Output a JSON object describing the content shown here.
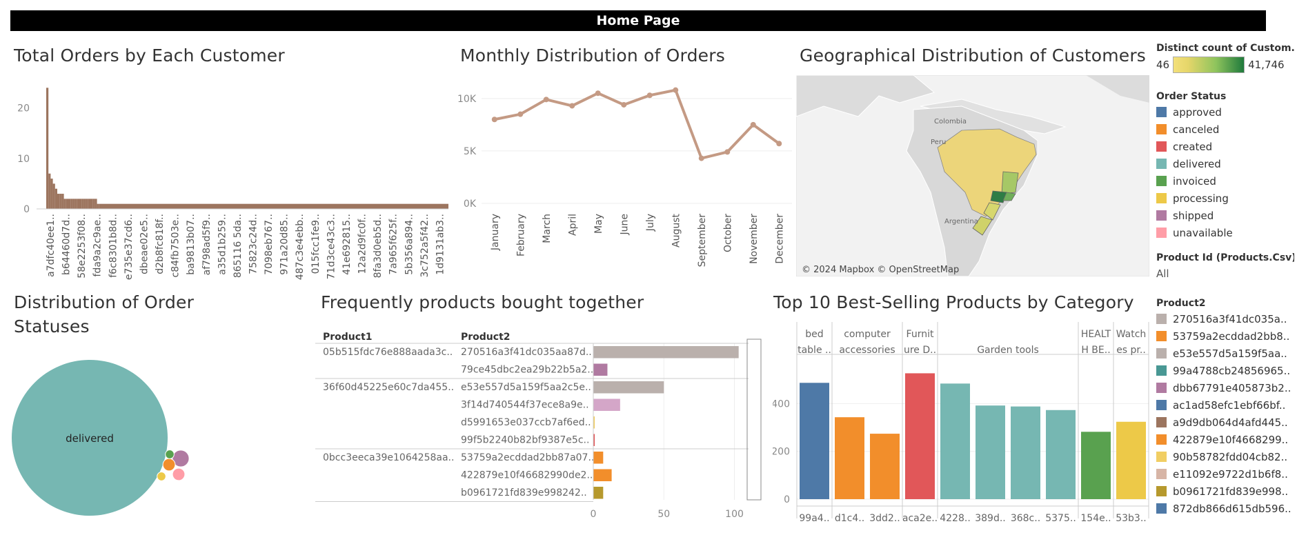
{
  "header": {
    "title": "Home Page"
  },
  "titles": {
    "orders_by_customer": "Total Orders by Each Customer",
    "monthly": "Monthly Distribution of Orders",
    "geo": "Geographical Distribution of Customers",
    "statuses_line1": "Distribution of Order",
    "statuses_line2": "Statuses",
    "bought_together": "Frequently products bought together",
    "top10": "Top 10 Best-Selling Products by Category"
  },
  "map": {
    "attribution": "© 2024 Mapbox © OpenStreetMap",
    "labels": [
      "Colombia",
      "Peru",
      "Argentina"
    ]
  },
  "legend": {
    "distinct_title": "Distinct count of Custom..",
    "distinct_min": "46",
    "distinct_max": "41,746",
    "order_status_title": "Order Status",
    "order_status": [
      {
        "label": "approved",
        "color": "#4e79a7"
      },
      {
        "label": "canceled",
        "color": "#f28e2b"
      },
      {
        "label": "created",
        "color": "#e15759"
      },
      {
        "label": "delivered",
        "color": "#76b7b2"
      },
      {
        "label": "invoiced",
        "color": "#59a14f"
      },
      {
        "label": "processing",
        "color": "#edc948"
      },
      {
        "label": "shipped",
        "color": "#b07aa1"
      },
      {
        "label": "unavailable",
        "color": "#ff9da7"
      }
    ],
    "product_id_title": "Product Id (Products.Csv)",
    "product_id_value": "All",
    "product2_title": "Product2",
    "product2": [
      {
        "label": "270516a3f41dc035a..",
        "color": "#bab0ac"
      },
      {
        "label": "53759a2ecddad2bb8..",
        "color": "#f28e2b"
      },
      {
        "label": "e53e557d5a159f5aa..",
        "color": "#bab0ac"
      },
      {
        "label": "99a4788cb24856965..",
        "color": "#499894"
      },
      {
        "label": "dbb67791e405873b2..",
        "color": "#b07aa1"
      },
      {
        "label": "ac1ad58efc1ebf66bf..",
        "color": "#4e79a7"
      },
      {
        "label": "a9d9db064d4afd445..",
        "color": "#9c755f"
      },
      {
        "label": "422879e10f4668299..",
        "color": "#f28e2b"
      },
      {
        "label": "90b58782fdd04cb82..",
        "color": "#f1ce63"
      },
      {
        "label": "e11092e9722d1b6f8..",
        "color": "#d7b5a6"
      },
      {
        "label": "b0961721fd839e998..",
        "color": "#b6992d"
      },
      {
        "label": "872db866d615db596..",
        "color": "#4e79a7"
      }
    ]
  },
  "chart_data": [
    {
      "type": "bar",
      "title": "Total Orders by Each Customer",
      "color": "#9c755f",
      "yticks": [
        "20",
        "10",
        "0"
      ],
      "ylim": [
        0,
        25
      ],
      "values": [
        24,
        7,
        6,
        5,
        4,
        3,
        3,
        3,
        2,
        2,
        2,
        2,
        2,
        2,
        2,
        2,
        2,
        2,
        2,
        2,
        2,
        2,
        2,
        1
      ],
      "tail_value": 1,
      "xlabels": [
        "a7dfc40ee1..",
        "b64460d7d..",
        "58e2253f08..",
        "fda9a2c9ae..",
        "f6c8301b8d..",
        "e735e37cd6..",
        "dbeae02e5..",
        "d2b8fc818f..",
        "c84fb7503e..",
        "ba9813b07..",
        "af798ad5f9..",
        "a35d1b259..",
        "865116 5da..",
        "75823c24d..",
        "7098eb767..",
        "971a20d85..",
        "487c3e4ebb..",
        "015fcc1fe9..",
        "71d3ce43c3..",
        "41e692815..",
        "12a2d9fc0f..",
        "8fa3d0eb5d..",
        "7a965f625f..",
        "5b356a894..",
        "3c752a5f42..",
        "1d9131ab3.."
      ]
    },
    {
      "type": "line",
      "title": "Monthly Distribution of Orders",
      "color": "#c49a84",
      "categories": [
        "January",
        "February",
        "March",
        "April",
        "May",
        "June",
        "July",
        "August",
        "September",
        "October",
        "November",
        "December"
      ],
      "values": [
        8000,
        8500,
        9900,
        9300,
        10500,
        9400,
        10300,
        10800,
        4300,
        4900,
        7500,
        5700
      ],
      "yticks": [
        "10K",
        "5K",
        "0K"
      ],
      "ylim": [
        0,
        11500
      ]
    },
    {
      "type": "scatter",
      "title": "Distribution of Order Statuses",
      "bubbles": [
        {
          "label": "delivered",
          "status": "delivered",
          "value": 96000
        },
        {
          "status": "shipped",
          "value": 1100
        },
        {
          "status": "unavailable",
          "value": 600
        },
        {
          "status": "canceled",
          "value": 600
        },
        {
          "status": "invoiced",
          "value": 300
        },
        {
          "status": "processing",
          "value": 300
        }
      ]
    },
    {
      "type": "bar",
      "title": "Frequently products bought together",
      "col1_header": "Product1",
      "col2_header": "Product2",
      "xticks": [
        "0",
        "50",
        "100"
      ],
      "xlim": [
        0,
        110
      ],
      "groups": [
        {
          "product1": "05b515fdc76e888aada3c..",
          "rows": [
            {
              "product2": "270516a3f41dc035aa87d..",
              "value": 103,
              "color": "#bab0ac"
            },
            {
              "product2": "79ce45dbc2ea29b22b5a2..",
              "value": 10,
              "color": "#b07aa1"
            }
          ]
        },
        {
          "product1": "36f60d45225e60c7da455..",
          "rows": [
            {
              "product2": "e53e557d5a159f5aa2c5e..",
              "value": 50,
              "color": "#bab0ac"
            },
            {
              "product2": "3f14d740544f37ece8a9e..",
              "value": 19,
              "color": "#d4a6c8"
            },
            {
              "product2": "d5991653e037ccb7af6ed..",
              "value": 1,
              "color": "#f1ce63"
            },
            {
              "product2": "99f5b2240b82bf9387e5c..",
              "value": 1,
              "color": "#e15759"
            }
          ]
        },
        {
          "product1": "0bcc3eeca39e1064258aa..",
          "rows": [
            {
              "product2": "53759a2ecddad2bb87a07..",
              "value": 7,
              "color": "#f28e2b"
            },
            {
              "product2": "422879e10f46682990de2..",
              "value": 13,
              "color": "#f28e2b"
            },
            {
              "product2": "b0961721fd839e998242..",
              "value": 7,
              "color": "#b6992d"
            }
          ]
        }
      ]
    },
    {
      "type": "bar",
      "title": "Top 10 Best-Selling Products by Category",
      "yticks": [
        "400",
        "200",
        "0"
      ],
      "ylim": [
        0,
        560
      ],
      "categories": [
        {
          "line1": "bed",
          "line2": "table ..",
          "span": 1
        },
        {
          "line1": "computer",
          "line2": "accessories",
          "span": 2
        },
        {
          "line1": "Furnit",
          "line2": "ure D..",
          "span": 1
        },
        {
          "line1": "",
          "line2": "Garden tools",
          "span": 4
        },
        {
          "line1": "HEALT",
          "line2": "H BE..",
          "span": 1
        },
        {
          "line1": "Watch",
          "line2": "es pr..",
          "span": 1
        }
      ],
      "bars": [
        {
          "label": "99a4..",
          "value": 487,
          "color": "#4e79a7"
        },
        {
          "label": "d1c4..",
          "value": 343,
          "color": "#f28e2b"
        },
        {
          "label": "3dd2..",
          "value": 274,
          "color": "#f28e2b"
        },
        {
          "label": "aca2e..",
          "value": 527,
          "color": "#e15759"
        },
        {
          "label": "4228..",
          "value": 484,
          "color": "#76b7b2"
        },
        {
          "label": "389d..",
          "value": 392,
          "color": "#76b7b2"
        },
        {
          "label": "368c..",
          "value": 388,
          "color": "#76b7b2"
        },
        {
          "label": "5375..",
          "value": 373,
          "color": "#76b7b2"
        },
        {
          "label": "154e..",
          "value": 282,
          "color": "#59a14f"
        },
        {
          "label": "53b3..",
          "value": 324,
          "color": "#edc948"
        }
      ]
    }
  ]
}
